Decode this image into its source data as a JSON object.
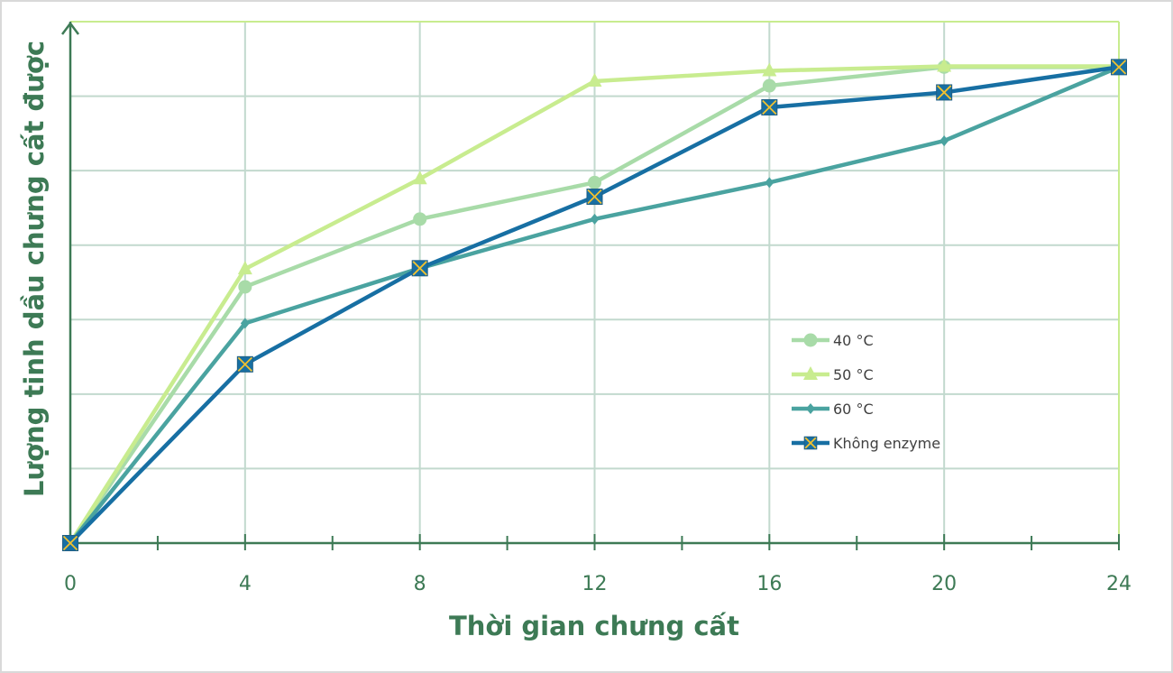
{
  "chart_data": {
    "type": "line",
    "title": "",
    "xlabel": "Thời gian chưng cất",
    "ylabel": "Lượng tinh dầu chưng cất được",
    "x": [
      0,
      4,
      8,
      12,
      16,
      20,
      24
    ],
    "x_ticks": [
      "0",
      "4",
      "8",
      "12",
      "16",
      "20",
      "24"
    ],
    "xlim": [
      0,
      24
    ],
    "ylim": [
      0,
      7
    ],
    "y_ticks_visible": false,
    "grid": true,
    "legend_position": "inside-lower-right",
    "series": [
      {
        "name": "40 °C",
        "color": "#a8dba8",
        "marker": "circle",
        "values": [
          0,
          3.44,
          4.35,
          4.84,
          6.14,
          6.39,
          6.39
        ]
      },
      {
        "name": "50 °C",
        "color": "#c8ec8f",
        "marker": "triangle",
        "values": [
          0,
          3.68,
          4.89,
          6.2,
          6.34,
          6.4,
          6.4
        ]
      },
      {
        "name": "60 °C",
        "color": "#4aa3a0",
        "marker": "diamond",
        "values": [
          0,
          2.95,
          3.69,
          4.35,
          4.84,
          5.4,
          6.39
        ]
      },
      {
        "name": "Không enzyme",
        "color": "#176fa3",
        "marker": "x-square",
        "values": [
          0,
          2.4,
          3.69,
          4.65,
          5.85,
          6.05,
          6.39
        ]
      }
    ]
  },
  "colors": {
    "axis": "#3d7a55",
    "grid": "#c2d9ce",
    "plot_border": "#c8ec8f",
    "marker_x": "#f2c12e"
  }
}
